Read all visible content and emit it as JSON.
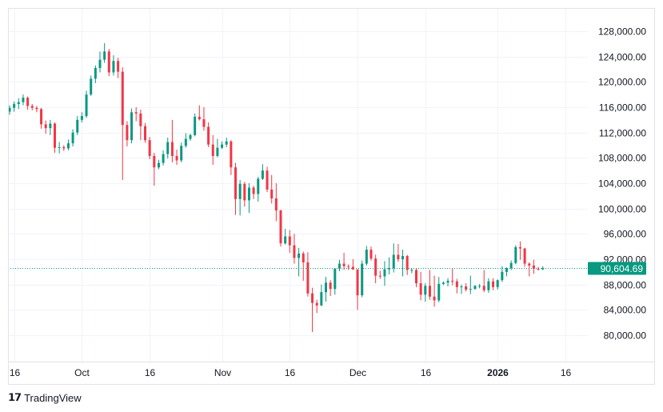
{
  "chart_data": {
    "type": "candlestick",
    "title": "",
    "xlabel": "",
    "ylabel": "",
    "ylim": [
      76000,
      130500
    ],
    "grid": true,
    "y_ticks": [
      "128,000.00",
      "124,000.00",
      "120,000.00",
      "116,000.00",
      "112,000.00",
      "108,000.00",
      "104,000.00",
      "100,000.00",
      "96,000.00",
      "92,000.00",
      "88,000.00",
      "84,000.00",
      "80,000.00"
    ],
    "y_tick_values": [
      128000,
      124000,
      120000,
      116000,
      112000,
      108000,
      104000,
      100000,
      96000,
      92000,
      88000,
      84000,
      80000
    ],
    "x_ticks": [
      {
        "label": "16",
        "date": "2025-09-16",
        "bold": false
      },
      {
        "label": "Oct",
        "date": "2025-10-01",
        "bold": false
      },
      {
        "label": "16",
        "date": "2025-10-16",
        "bold": false
      },
      {
        "label": "Nov",
        "date": "2025-11-01",
        "bold": false
      },
      {
        "label": "16",
        "date": "2025-11-16",
        "bold": false
      },
      {
        "label": "Dec",
        "date": "2025-12-01",
        "bold": false
      },
      {
        "label": "16",
        "date": "2025-12-16",
        "bold": false
      },
      {
        "label": "2026",
        "date": "2026-01-01",
        "bold": true
      },
      {
        "label": "16",
        "date": "2026-01-16",
        "bold": false
      }
    ],
    "last_price": 90604.69,
    "last_price_label": "90,604.69",
    "colors": {
      "up": "#089981",
      "down": "#F23645",
      "grid": "#F0F3FA",
      "text": "#131722"
    },
    "ohlc_columns": [
      "date",
      "open",
      "high",
      "low",
      "close"
    ],
    "ohlc": [
      [
        "2025-09-15",
        115300,
        116300,
        114800,
        115900
      ],
      [
        "2025-09-16",
        115900,
        116900,
        115300,
        116500
      ],
      [
        "2025-09-17",
        116500,
        117400,
        115700,
        116800
      ],
      [
        "2025-09-18",
        116800,
        118000,
        116300,
        117500
      ],
      [
        "2025-09-19",
        117500,
        117700,
        115600,
        116200
      ],
      [
        "2025-09-20",
        116200,
        116500,
        115500,
        115900
      ],
      [
        "2025-09-21",
        115900,
        116200,
        115200,
        115700
      ],
      [
        "2025-09-22",
        115700,
        115900,
        112600,
        113300
      ],
      [
        "2025-09-23",
        113300,
        113900,
        111800,
        112700
      ],
      [
        "2025-09-24",
        112700,
        114000,
        111600,
        113400
      ],
      [
        "2025-09-25",
        113400,
        113600,
        108800,
        109600
      ],
      [
        "2025-09-26",
        109600,
        110500,
        108700,
        109700
      ],
      [
        "2025-09-27",
        109700,
        110000,
        109100,
        109500
      ],
      [
        "2025-09-28",
        109500,
        110900,
        109200,
        110300
      ],
      [
        "2025-09-29",
        110300,
        112500,
        109800,
        112000
      ],
      [
        "2025-09-30",
        112000,
        114600,
        111600,
        114000
      ],
      [
        "2025-10-01",
        114000,
        115200,
        113600,
        114600
      ],
      [
        "2025-10-02",
        114600,
        118600,
        114300,
        118000
      ],
      [
        "2025-10-03",
        118000,
        121000,
        117800,
        120500
      ],
      [
        "2025-10-04",
        120500,
        122600,
        119800,
        122200
      ],
      [
        "2025-10-05",
        122200,
        124800,
        121500,
        123500
      ],
      [
        "2025-10-06",
        123500,
        126100,
        123000,
        124800
      ],
      [
        "2025-10-07",
        124800,
        125200,
        120900,
        121500
      ],
      [
        "2025-10-08",
        121500,
        124200,
        121000,
        123300
      ],
      [
        "2025-10-09",
        123300,
        123800,
        120600,
        121600
      ],
      [
        "2025-10-10",
        121600,
        122300,
        104500,
        113200
      ],
      [
        "2025-10-11",
        113200,
        113800,
        109800,
        110800
      ],
      [
        "2025-10-12",
        110800,
        115800,
        110300,
        115200
      ],
      [
        "2025-10-13",
        115200,
        116000,
        113800,
        115000
      ],
      [
        "2025-10-14",
        115000,
        115600,
        110800,
        113000
      ],
      [
        "2025-10-15",
        113000,
        113500,
        110400,
        110800
      ],
      [
        "2025-10-16",
        110800,
        111300,
        107800,
        108300
      ],
      [
        "2025-10-17",
        108300,
        108800,
        103600,
        106500
      ],
      [
        "2025-10-18",
        106500,
        107700,
        106200,
        107200
      ],
      [
        "2025-10-19",
        107200,
        109200,
        106800,
        108600
      ],
      [
        "2025-10-20",
        108600,
        111200,
        107900,
        110500
      ],
      [
        "2025-10-21",
        110500,
        114000,
        107300,
        108300
      ],
      [
        "2025-10-22",
        108300,
        109300,
        106900,
        107600
      ],
      [
        "2025-10-23",
        107600,
        110400,
        107300,
        109900
      ],
      [
        "2025-10-24",
        109900,
        111900,
        109600,
        111000
      ],
      [
        "2025-10-25",
        111000,
        111800,
        110700,
        111600
      ],
      [
        "2025-10-26",
        111600,
        115000,
        111400,
        114500
      ],
      [
        "2025-10-27",
        114500,
        116300,
        113900,
        114100
      ],
      [
        "2025-10-28",
        114100,
        116000,
        112300,
        112900
      ],
      [
        "2025-10-29",
        112900,
        113600,
        109700,
        110100
      ],
      [
        "2025-10-30",
        110100,
        111600,
        106900,
        108300
      ],
      [
        "2025-10-31",
        108300,
        111000,
        108100,
        109600
      ],
      [
        "2025-11-01",
        109600,
        110600,
        109400,
        110100
      ],
      [
        "2025-11-02",
        110100,
        111200,
        109700,
        110600
      ],
      [
        "2025-11-03",
        110600,
        110800,
        105300,
        106500
      ],
      [
        "2025-11-04",
        106500,
        107200,
        99000,
        101500
      ],
      [
        "2025-11-05",
        101500,
        104500,
        98900,
        103900
      ],
      [
        "2025-11-06",
        103900,
        104200,
        100300,
        101300
      ],
      [
        "2025-11-07",
        101300,
        104000,
        99300,
        103300
      ],
      [
        "2025-11-08",
        103300,
        103600,
        101500,
        102300
      ],
      [
        "2025-11-09",
        102300,
        105000,
        101100,
        104700
      ],
      [
        "2025-11-10",
        104700,
        107000,
        104500,
        106000
      ],
      [
        "2025-11-11",
        106000,
        106600,
        102600,
        103000
      ],
      [
        "2025-11-12",
        103000,
        105300,
        100800,
        101600
      ],
      [
        "2025-11-13",
        101600,
        104000,
        98000,
        99700
      ],
      [
        "2025-11-14",
        99700,
        99800,
        94000,
        94500
      ],
      [
        "2025-11-15",
        94500,
        96800,
        94300,
        95600
      ],
      [
        "2025-11-16",
        95600,
        96600,
        93000,
        94200
      ],
      [
        "2025-11-17",
        94200,
        96000,
        91300,
        92200
      ],
      [
        "2025-11-18",
        92200,
        93800,
        89300,
        92900
      ],
      [
        "2025-11-19",
        92900,
        93200,
        88600,
        91500
      ],
      [
        "2025-11-20",
        91500,
        93100,
        86100,
        86600
      ],
      [
        "2025-11-21",
        86600,
        87500,
        80500,
        85100
      ],
      [
        "2025-11-22",
        85100,
        85600,
        83500,
        84700
      ],
      [
        "2025-11-23",
        84700,
        88000,
        84600,
        86800
      ],
      [
        "2025-11-24",
        86800,
        89200,
        85300,
        88300
      ],
      [
        "2025-11-25",
        88300,
        88700,
        86200,
        87300
      ],
      [
        "2025-11-26",
        87300,
        90600,
        86400,
        90500
      ],
      [
        "2025-11-27",
        90500,
        91900,
        90100,
        91300
      ],
      [
        "2025-11-28",
        91300,
        93000,
        90300,
        90900
      ],
      [
        "2025-11-29",
        90900,
        91200,
        90300,
        90800
      ],
      [
        "2025-11-30",
        90800,
        92000,
        90300,
        90400
      ],
      [
        "2025-12-01",
        90400,
        90400,
        84000,
        86300
      ],
      [
        "2025-12-02",
        86300,
        91800,
        86000,
        91300
      ],
      [
        "2025-12-03",
        91300,
        94100,
        91000,
        93500
      ],
      [
        "2025-12-04",
        93500,
        94000,
        91800,
        92100
      ],
      [
        "2025-12-05",
        92100,
        92700,
        88200,
        89400
      ],
      [
        "2025-12-06",
        89400,
        90200,
        88900,
        89300
      ],
      [
        "2025-12-07",
        89300,
        91700,
        87800,
        90400
      ],
      [
        "2025-12-08",
        90400,
        92300,
        89600,
        90600
      ],
      [
        "2025-12-09",
        90600,
        94500,
        89900,
        92700
      ],
      [
        "2025-12-10",
        92700,
        94400,
        91600,
        92000
      ],
      [
        "2025-12-11",
        92000,
        93500,
        89300,
        92500
      ],
      [
        "2025-12-12",
        92500,
        92700,
        89500,
        90300
      ],
      [
        "2025-12-13",
        90300,
        90600,
        89800,
        90300
      ],
      [
        "2025-12-14",
        90300,
        90500,
        87600,
        88200
      ],
      [
        "2025-12-15",
        88200,
        90000,
        85500,
        86400
      ],
      [
        "2025-12-16",
        86400,
        88200,
        85300,
        87800
      ],
      [
        "2025-12-17",
        87800,
        90300,
        85600,
        86100
      ],
      [
        "2025-12-18",
        86100,
        89400,
        84500,
        85500
      ],
      [
        "2025-12-19",
        85500,
        89200,
        85200,
        88100
      ],
      [
        "2025-12-20",
        88100,
        88500,
        87900,
        88300
      ],
      [
        "2025-12-21",
        88300,
        89000,
        87700,
        88600
      ],
      [
        "2025-12-22",
        88600,
        90500,
        87900,
        88500
      ],
      [
        "2025-12-23",
        88500,
        88900,
        86600,
        87600
      ],
      [
        "2025-12-24",
        87600,
        88000,
        86500,
        87700
      ],
      [
        "2025-12-25",
        87700,
        88200,
        86900,
        87200
      ],
      [
        "2025-12-26",
        87200,
        89400,
        86500,
        87300
      ],
      [
        "2025-12-27",
        87300,
        87900,
        87200,
        87800
      ],
      [
        "2025-12-28",
        87800,
        88100,
        87400,
        87800
      ],
      [
        "2025-12-29",
        87800,
        90300,
        86800,
        87100
      ],
      [
        "2025-12-30",
        87100,
        89000,
        86700,
        88500
      ],
      [
        "2025-12-31",
        88500,
        89000,
        87100,
        87600
      ],
      [
        "2026-01-01",
        87600,
        88800,
        87200,
        88700
      ],
      [
        "2026-01-02",
        88700,
        90900,
        88400,
        90000
      ],
      [
        "2026-01-03",
        90000,
        90700,
        89300,
        90600
      ],
      [
        "2026-01-04",
        90600,
        91800,
        90300,
        91400
      ],
      [
        "2026-01-05",
        91400,
        94200,
        91200,
        93900
      ],
      [
        "2026-01-06",
        93900,
        94800,
        91900,
        93700
      ],
      [
        "2026-01-07",
        93700,
        93800,
        90800,
        91300
      ],
      [
        "2026-01-08",
        91300,
        91500,
        89300,
        91000
      ],
      [
        "2026-01-09",
        91000,
        91900,
        89700,
        90500
      ],
      [
        "2026-01-10",
        90500,
        90800,
        90200,
        90400
      ],
      [
        "2026-01-11",
        90400,
        90900,
        90300,
        90604.69
      ]
    ]
  },
  "footer": {
    "brand": "TradingView",
    "logo_text": "TV"
  }
}
